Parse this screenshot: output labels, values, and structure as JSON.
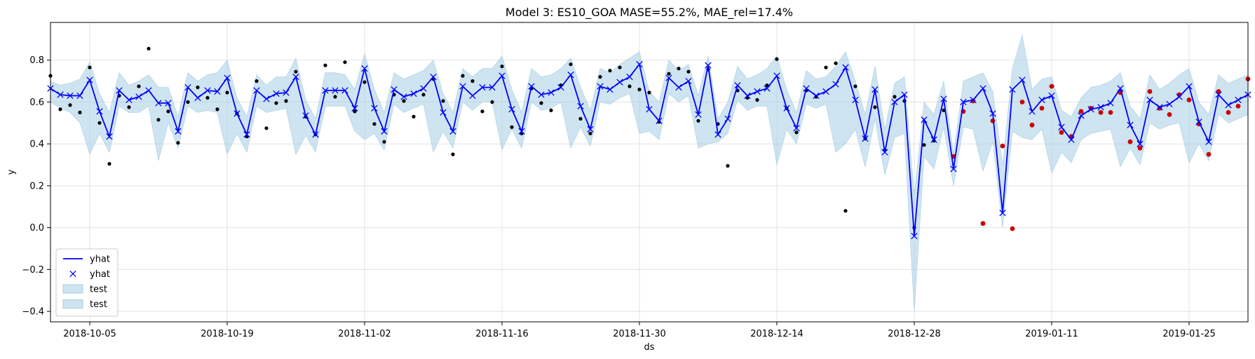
{
  "chart_data": {
    "type": "line",
    "title": "Model 3: ES10_GOA MASE=55.2%, MAE_rel=17.4%",
    "xlabel": "ds",
    "ylabel": "y",
    "ylim": [
      -0.45,
      0.98
    ],
    "yticks": [
      -0.4,
      -0.2,
      0.0,
      0.2,
      0.4,
      0.6,
      0.8
    ],
    "ytick_labels": [
      "−0.4",
      "−0.2",
      "0.0",
      "0.2",
      "0.4",
      "0.6",
      "0.8"
    ],
    "x_start": "2018-10-01",
    "x_end": "2019-01-31",
    "xticks": [
      "2018-10-05",
      "2018-10-19",
      "2018-11-02",
      "2018-11-16",
      "2018-11-30",
      "2018-12-14",
      "2018-12-28",
      "2019-01-11",
      "2019-01-25"
    ],
    "grid": true,
    "legend_position": "lower-left",
    "legend": [
      {
        "label": "yhat",
        "kind": "line",
        "color": "#0000ff"
      },
      {
        "label": "yhat",
        "kind": "marker",
        "color": "#0000ff"
      },
      {
        "label": "test",
        "kind": "band",
        "color": "#a6cee3"
      },
      {
        "label": "test",
        "kind": "band",
        "color": "#a6cee3"
      }
    ],
    "colors": {
      "yhat": "#0000ff",
      "band": "#a6cee3",
      "train_points": "#000000",
      "test_points": "#cc0000"
    },
    "test_start_index": 92,
    "yhat": [
      0.665,
      0.635,
      0.63,
      0.63,
      0.705,
      0.555,
      0.435,
      0.655,
      0.61,
      0.625,
      0.655,
      0.595,
      0.595,
      0.46,
      0.67,
      0.62,
      0.655,
      0.65,
      0.715,
      0.545,
      0.445,
      0.655,
      0.615,
      0.64,
      0.645,
      0.72,
      0.535,
      0.445,
      0.655,
      0.655,
      0.655,
      0.57,
      0.76,
      0.57,
      0.46,
      0.66,
      0.625,
      0.64,
      0.665,
      0.72,
      0.55,
      0.46,
      0.675,
      0.63,
      0.67,
      0.67,
      0.725,
      0.565,
      0.46,
      0.675,
      0.635,
      0.645,
      0.67,
      0.73,
      0.58,
      0.47,
      0.675,
      0.66,
      0.695,
      0.72,
      0.78,
      0.565,
      0.51,
      0.715,
      0.67,
      0.7,
      0.54,
      0.775,
      0.445,
      0.52,
      0.68,
      0.63,
      0.65,
      0.665,
      0.725,
      0.57,
      0.475,
      0.665,
      0.63,
      0.65,
      0.685,
      0.765,
      0.61,
      0.425,
      0.66,
      0.36,
      0.6,
      0.635,
      -0.04,
      0.515,
      0.42,
      0.615,
      0.28,
      0.6,
      0.61,
      0.665,
      0.545,
      0.07,
      0.66,
      0.705,
      0.555,
      0.61,
      0.63,
      0.48,
      0.42,
      0.535,
      0.565,
      0.575,
      0.595,
      0.665,
      0.49,
      0.4,
      0.61,
      0.575,
      0.59,
      0.625,
      0.675,
      0.505,
      0.41,
      0.635,
      0.585,
      0.61,
      0.635
    ],
    "yhat_lower": [
      0.6,
      0.57,
      0.55,
      0.5,
      0.35,
      0.45,
      0.36,
      0.58,
      0.55,
      0.55,
      0.58,
      0.32,
      0.5,
      0.38,
      0.58,
      0.55,
      0.56,
      0.55,
      0.35,
      0.45,
      0.36,
      0.58,
      0.55,
      0.56,
      0.57,
      0.35,
      0.44,
      0.36,
      0.58,
      0.58,
      0.58,
      0.46,
      0.42,
      0.45,
      0.37,
      0.59,
      0.55,
      0.57,
      0.59,
      0.36,
      0.46,
      0.38,
      0.6,
      0.56,
      0.6,
      0.6,
      0.37,
      0.47,
      0.38,
      0.6,
      0.56,
      0.57,
      0.6,
      0.38,
      0.48,
      0.39,
      0.6,
      0.59,
      0.62,
      0.64,
      0.45,
      0.46,
      0.42,
      0.64,
      0.6,
      0.63,
      0.38,
      0.4,
      0.41,
      0.45,
      0.61,
      0.56,
      0.58,
      0.58,
      0.3,
      0.47,
      0.4,
      0.59,
      0.57,
      0.59,
      0.36,
      0.4,
      0.47,
      0.29,
      0.52,
      0.25,
      0.43,
      0.45,
      -0.4,
      0.34,
      0.28,
      0.48,
      0.2,
      0.48,
      0.47,
      0.27,
      0.41,
      0.0,
      0.46,
      0.43,
      0.42,
      0.47,
      0.26,
      0.36,
      0.31,
      0.42,
      0.45,
      0.46,
      0.47,
      0.29,
      0.38,
      0.3,
      0.5,
      0.47,
      0.49,
      0.5,
      0.31,
      0.4,
      0.32,
      0.54,
      0.5,
      0.52,
      0.54
    ],
    "yhat_upper": [
      0.7,
      0.68,
      0.69,
      0.71,
      0.79,
      0.64,
      0.55,
      0.74,
      0.68,
      0.7,
      0.73,
      0.67,
      0.67,
      0.53,
      0.74,
      0.7,
      0.73,
      0.74,
      0.8,
      0.62,
      0.53,
      0.73,
      0.68,
      0.72,
      0.72,
      0.81,
      0.61,
      0.52,
      0.74,
      0.74,
      0.73,
      0.66,
      0.83,
      0.66,
      0.55,
      0.74,
      0.71,
      0.73,
      0.75,
      0.8,
      0.64,
      0.55,
      0.76,
      0.72,
      0.76,
      0.76,
      0.82,
      0.66,
      0.55,
      0.76,
      0.72,
      0.73,
      0.76,
      0.81,
      0.67,
      0.56,
      0.76,
      0.74,
      0.78,
      0.81,
      0.84,
      0.65,
      0.6,
      0.8,
      0.75,
      0.78,
      0.63,
      0.82,
      0.52,
      0.6,
      0.77,
      0.71,
      0.73,
      0.76,
      0.82,
      0.66,
      0.55,
      0.75,
      0.71,
      0.72,
      0.77,
      0.84,
      0.7,
      0.54,
      0.77,
      0.47,
      0.69,
      0.72,
      0.15,
      0.6,
      0.54,
      0.7,
      0.35,
      0.7,
      0.72,
      0.74,
      0.65,
      0.3,
      0.76,
      0.92,
      0.66,
      0.71,
      0.72,
      0.56,
      0.53,
      0.62,
      0.67,
      0.68,
      0.7,
      0.74,
      0.58,
      0.52,
      0.73,
      0.66,
      0.69,
      0.73,
      0.76,
      0.6,
      0.54,
      0.73,
      0.69,
      0.71,
      0.73
    ],
    "actual": [
      0.725,
      0.565,
      0.585,
      0.55,
      0.765,
      0.5,
      0.305,
      0.63,
      0.575,
      0.675,
      0.855,
      0.515,
      0.555,
      0.405,
      0.6,
      0.67,
      0.62,
      0.565,
      0.645,
      0.545,
      0.435,
      0.7,
      0.475,
      0.595,
      0.605,
      0.745,
      0.53,
      0.445,
      0.775,
      0.625,
      0.79,
      0.555,
      0.695,
      0.495,
      0.41,
      0.635,
      0.605,
      0.53,
      0.635,
      0.71,
      0.605,
      0.35,
      0.725,
      0.7,
      0.555,
      0.6,
      0.77,
      0.48,
      0.45,
      0.665,
      0.595,
      0.56,
      0.68,
      0.78,
      0.52,
      0.45,
      0.72,
      0.75,
      0.765,
      0.675,
      0.66,
      0.645,
      0.505,
      0.735,
      0.76,
      0.745,
      0.51,
      0.755,
      0.495,
      0.295,
      0.655,
      0.62,
      0.61,
      0.68,
      0.805,
      0.57,
      0.455,
      0.655,
      0.625,
      0.765,
      0.785,
      0.08,
      0.675,
      0.425,
      0.575,
      0.37,
      0.625,
      0.605,
      0.0,
      0.395,
      0.415,
      0.56,
      0.34,
      0.555,
      0.605,
      0.02,
      0.51,
      0.39,
      -0.005,
      0.6,
      0.49,
      0.57,
      0.675,
      0.455,
      0.435,
      0.555,
      0.57,
      0.55,
      0.55,
      0.645,
      0.41,
      0.38,
      0.65,
      0.57,
      0.54,
      0.635,
      0.61,
      0.495,
      0.35,
      0.65,
      0.55,
      0.58,
      0.71
    ]
  }
}
